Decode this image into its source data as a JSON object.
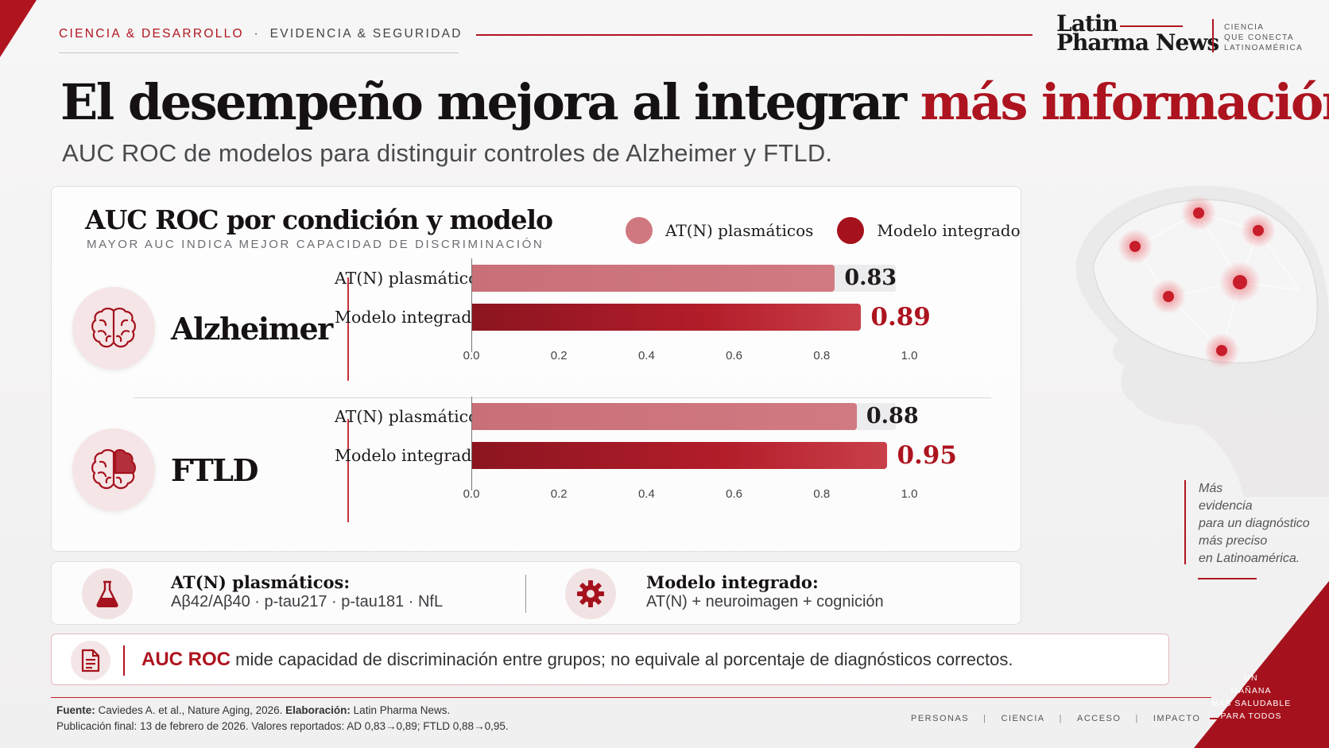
{
  "header": {
    "kicker_primary": "CIENCIA & DESARROLLO",
    "kicker_separator": "·",
    "kicker_secondary": "EVIDENCIA & SEGURIDAD",
    "logo_line1": "Latin",
    "logo_line2": "Pharma News",
    "logo_tag": [
      "CIENCIA",
      "QUE CONECTA",
      "LATINOAMÉRICA"
    ]
  },
  "headline": {
    "main": "El desempeño mejora al integrar ",
    "highlight": "más información",
    "subtitle": "AUC ROC de modelos para distinguir controles de Alzheimer y FTLD."
  },
  "chart_data": {
    "type": "bar",
    "orientation": "horizontal",
    "title": "AUC ROC por condición y modelo",
    "subtitle": "MAYOR AUC INDICA MEJOR CAPACIDAD DE DISCRIMINACIÓN",
    "xlim": [
      0.0,
      1.0
    ],
    "x_ticks": [
      "0.0",
      "0.2",
      "0.4",
      "0.6",
      "0.8",
      "1.0"
    ],
    "legend": [
      {
        "name": "AT(N) plasmáticos",
        "color": "#d07880"
      },
      {
        "name": "Modelo integrado",
        "color": "#a5121d"
      }
    ],
    "legend_position": "top-right",
    "groups": [
      {
        "name": "Alzheimer",
        "icon": "brain-icon",
        "bars": [
          {
            "series": "AT(N) plasmáticos",
            "value": 0.83,
            "label": "0.83"
          },
          {
            "series": "Modelo integrado",
            "value": 0.89,
            "label": "0.89"
          }
        ]
      },
      {
        "name": "FTLD",
        "icon": "brain-frontal-icon",
        "bars": [
          {
            "series": "AT(N) plasmáticos",
            "value": 0.88,
            "label": "0.88"
          },
          {
            "series": "Modelo integrado",
            "value": 0.95,
            "label": "0.95"
          }
        ]
      }
    ]
  },
  "definitions": {
    "atn": {
      "icon": "flask-icon",
      "title": "AT(N) plasmáticos:",
      "desc": "Aβ42/Aβ40 · p-tau217 · p-tau181 · NfL"
    },
    "integrated": {
      "icon": "gear-icon",
      "title": "Modelo integrado:",
      "desc": "AT(N) + neuroimagen + cognición"
    }
  },
  "note": {
    "icon": "document-icon",
    "strong": "AUC ROC",
    "text": " mide capacidad de discriminación entre grupos; no equivale al porcentaje de diagnósticos correctos."
  },
  "side_quote": [
    "Más",
    "evidencia",
    "para un diagnóstico",
    "más preciso",
    "en Latinoamérica."
  ],
  "footer": {
    "source_label": "Fuente:",
    "source_text": " Caviedes A. et al., Nature Aging, 2026. ",
    "elab_label": "Elaboración:",
    "elab_text": " Latin Pharma News.",
    "pub_text": "Publicación final: 13 de febrero de 2026. Valores reportados: AD 0,83→0,89; FTLD 0,88→0,95.",
    "nav": [
      "PERSONAS",
      "CIENCIA",
      "ACCESO",
      "IMPACTO"
    ],
    "nav_separator": "|",
    "corner_text": [
      "UN",
      "MAÑANA",
      "MÁS SALUDABLE",
      "PARA TODOS"
    ]
  },
  "colors": {
    "accent": "#b0141f",
    "bar_light": "#d07880",
    "bar_dark": "#a5121d"
  }
}
